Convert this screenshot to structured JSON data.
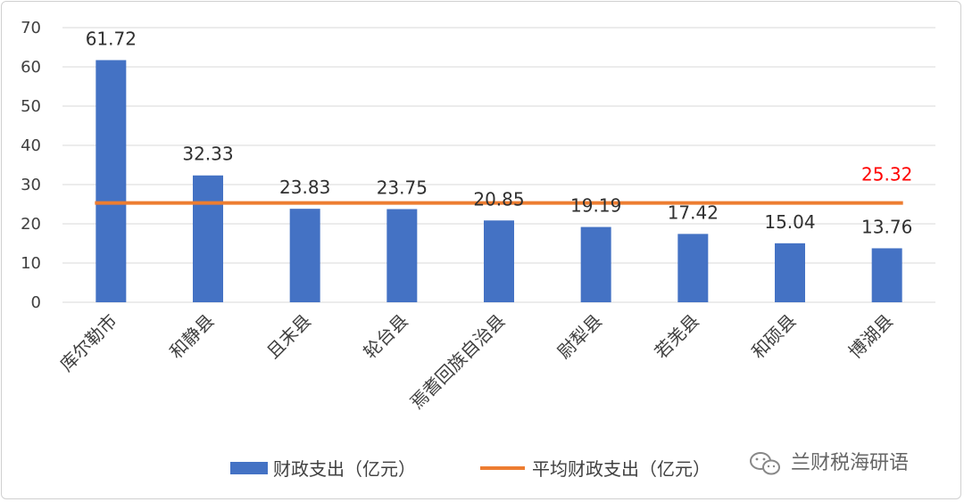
{
  "chart_data": {
    "type": "bar",
    "categories": [
      "库尔勒市",
      "和静县",
      "且末县",
      "轮台县",
      "焉耆回族自治县",
      "尉犁县",
      "若羌县",
      "和硕县",
      "博湖县"
    ],
    "series": [
      {
        "name": "财政支出（亿元）",
        "type": "bar",
        "values": [
          61.72,
          32.33,
          23.83,
          23.75,
          20.85,
          19.19,
          17.42,
          15.04,
          13.76
        ],
        "labels": [
          "61.72",
          "32.33",
          "23.83",
          "23.75",
          "20.85",
          "19.19",
          "17.42",
          "15.04",
          "13.76"
        ]
      },
      {
        "name": "平均财政支出（亿元）",
        "type": "line",
        "value": 25.32,
        "label": "25.32"
      }
    ],
    "ylim": [
      0,
      70
    ],
    "yticks": [
      "0",
      "10",
      "20",
      "30",
      "40",
      "50",
      "60",
      "70"
    ],
    "grid": true,
    "legend_position": "bottom",
    "title": "",
    "xlabel": "",
    "ylabel": ""
  },
  "colors": {
    "bar": "#4472c4",
    "line": "#ed7d31",
    "avg_label": "#ff0000",
    "grid": "#d9d9d9"
  },
  "watermark": {
    "icon": "wechat-icon",
    "text": "兰财税海研语"
  }
}
